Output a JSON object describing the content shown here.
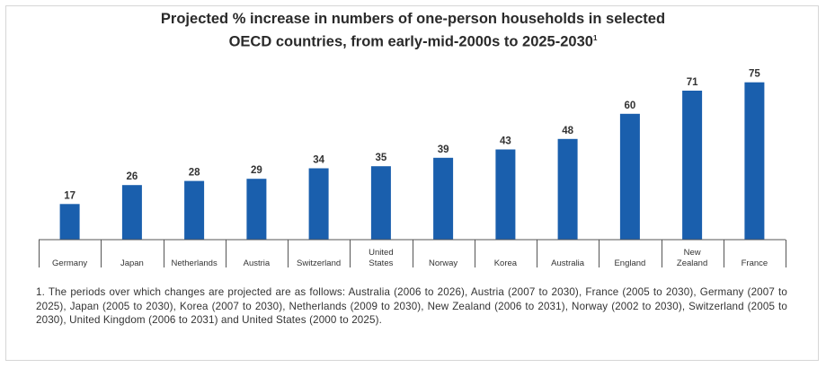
{
  "chart_data": {
    "type": "bar",
    "title_line1": "Projected % increase in numbers of one-person households in selected",
    "title_line2": "OECD countries, from early-mid-2000s to 2025-2030",
    "title_footnote_marker": "1",
    "categories": [
      "Germany",
      "Japan",
      "Netherlands",
      "Austria",
      "Switzerland",
      "United States",
      "Norway",
      "Korea",
      "Australia",
      "England",
      "New Zealand",
      "France"
    ],
    "category_lines": [
      [
        "Germany"
      ],
      [
        "Japan"
      ],
      [
        "Netherlands"
      ],
      [
        "Austria"
      ],
      [
        "Switzerland"
      ],
      [
        "United",
        "States"
      ],
      [
        "Norway"
      ],
      [
        "Korea"
      ],
      [
        "Australia"
      ],
      [
        "England"
      ],
      [
        "New",
        "Zealand"
      ],
      [
        "France"
      ]
    ],
    "values": [
      17,
      26,
      28,
      29,
      34,
      35,
      39,
      43,
      48,
      60,
      71,
      75
    ],
    "value_labels": [
      "17",
      "26",
      "28",
      "29",
      "34",
      "35",
      "39",
      "43",
      "48",
      "60",
      "71",
      "75"
    ],
    "ylim": [
      0,
      80
    ],
    "bar_color": "#1a5fad",
    "grid": false,
    "legend": "none"
  },
  "footnote": "1. The periods over which changes are projected are as follows: Australia (2006 to 2026), Austria (2007 to 2030), France (2005 to 2030), Germany (2007 to 2025), Japan (2005 to 2030), Korea (2007 to 2030), Netherlands (2009 to 2030), New Zealand (2006 to 2031), Norway (2002 to 2030), Switzerland (2005 to 2030), United Kingdom (2006 to 2031) and United States (2000 to 2025)."
}
